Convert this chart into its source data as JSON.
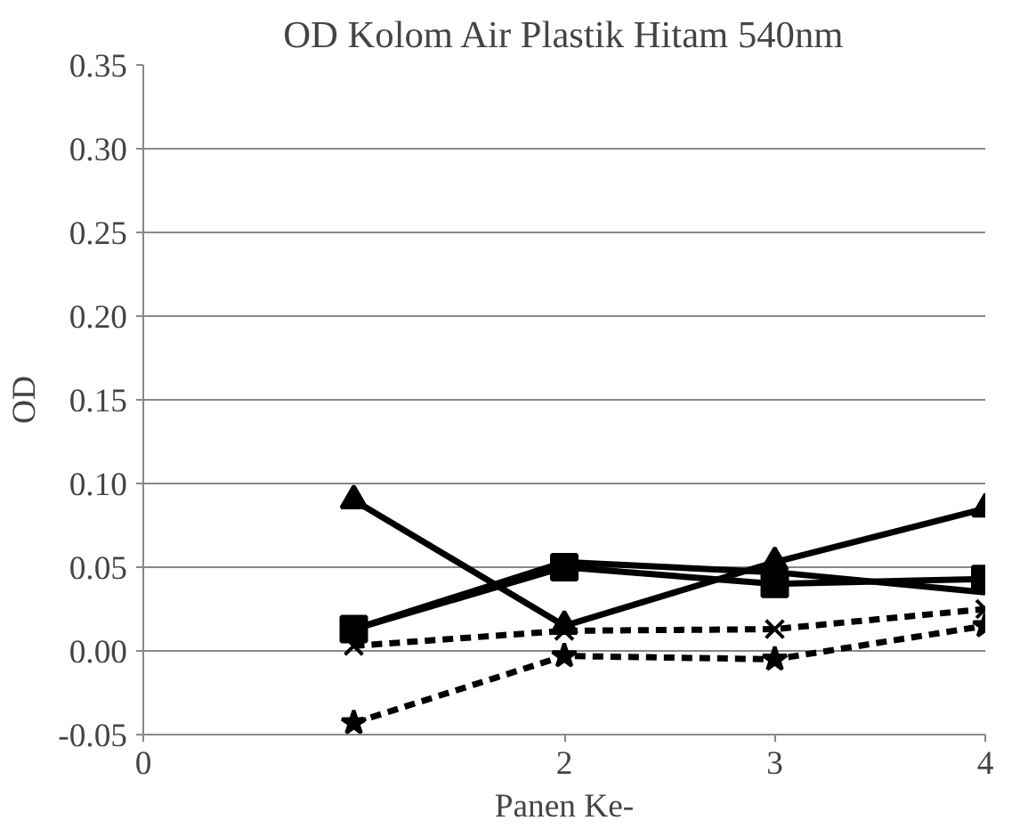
{
  "chart_data": {
    "type": "line",
    "title": "OD Kolom Air Plastik Hitam 540nm",
    "xlabel": "Panen Ke-",
    "ylabel": "OD",
    "x": [
      1,
      2,
      3,
      4
    ],
    "series": [
      {
        "color": "#000000",
        "marker": "triangle",
        "line_style": "solid",
        "values": [
          0.09,
          0.015,
          0.053,
          0.085
        ]
      },
      {
        "color": "#000000",
        "marker": "square",
        "line_style": "solid",
        "values": [
          0.013,
          0.05,
          0.04,
          0.043
        ]
      },
      {
        "color": "#000000",
        "marker": "none",
        "line_style": "solid",
        "values": [
          0.013,
          0.053,
          0.047,
          0.035
        ]
      },
      {
        "color": "#000000",
        "marker": "cross",
        "line_style": "dashed",
        "values": [
          0.003,
          0.012,
          0.013,
          0.025
        ]
      },
      {
        "color": "#000000",
        "marker": "star",
        "line_style": "dashed",
        "values": [
          -0.043,
          -0.003,
          -0.005,
          0.015
        ]
      }
    ],
    "xlim": [
      0,
      4
    ],
    "xticks": [
      0,
      2,
      3,
      4
    ],
    "ylim": [
      -0.05,
      0.35
    ],
    "yticks": [
      {
        "value": -0.05,
        "label": "-0.05"
      },
      {
        "value": 0,
        "label": "0.00"
      },
      {
        "value": 0.05,
        "label": "0.05"
      },
      {
        "value": 0.1,
        "label": "0.10"
      },
      {
        "value": 0.15,
        "label": "0.15"
      },
      {
        "value": 0.2,
        "label": "0.20"
      },
      {
        "value": 0.25,
        "label": "0.25"
      },
      {
        "value": 0.3,
        "label": "0.30"
      },
      {
        "value": 0.35,
        "label": "0.35"
      }
    ],
    "grid": "y"
  }
}
